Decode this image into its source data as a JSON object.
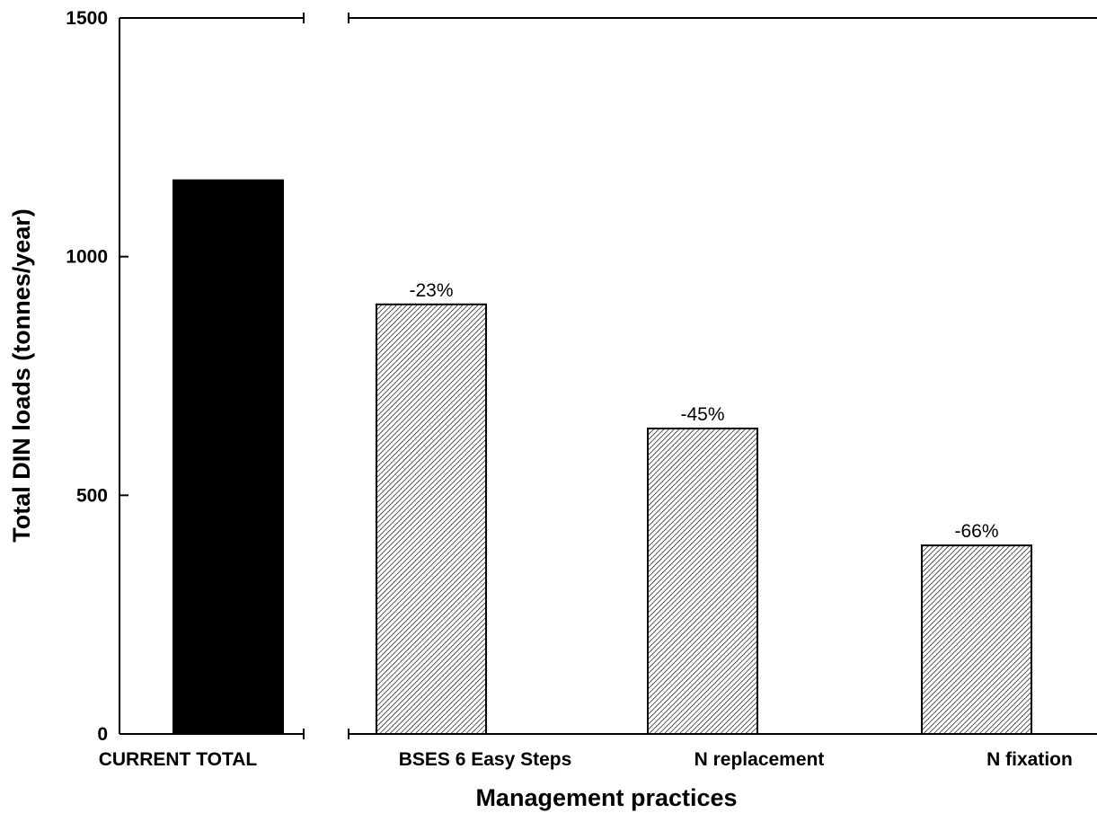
{
  "chart_data": {
    "type": "bar",
    "xlabel": "Management practices",
    "ylabel": "Total DIN loads (tonnes/year)",
    "ylim": [
      0,
      1500
    ],
    "yticks": [
      0,
      500,
      1000,
      1500
    ],
    "grid": false,
    "categories": [
      "CURRENT TOTAL",
      "BSES 6 Easy Steps",
      "N replacement",
      "N fixation"
    ],
    "values": [
      1160,
      900,
      640,
      395
    ],
    "data_labels": [
      "",
      "-23%",
      "-45%",
      "-66%"
    ],
    "bar_fills": [
      "solid",
      "hatched",
      "hatched",
      "hatched"
    ],
    "colors": {
      "solid": "#000000",
      "hatch": "#000000",
      "background": "#ffffff"
    }
  }
}
